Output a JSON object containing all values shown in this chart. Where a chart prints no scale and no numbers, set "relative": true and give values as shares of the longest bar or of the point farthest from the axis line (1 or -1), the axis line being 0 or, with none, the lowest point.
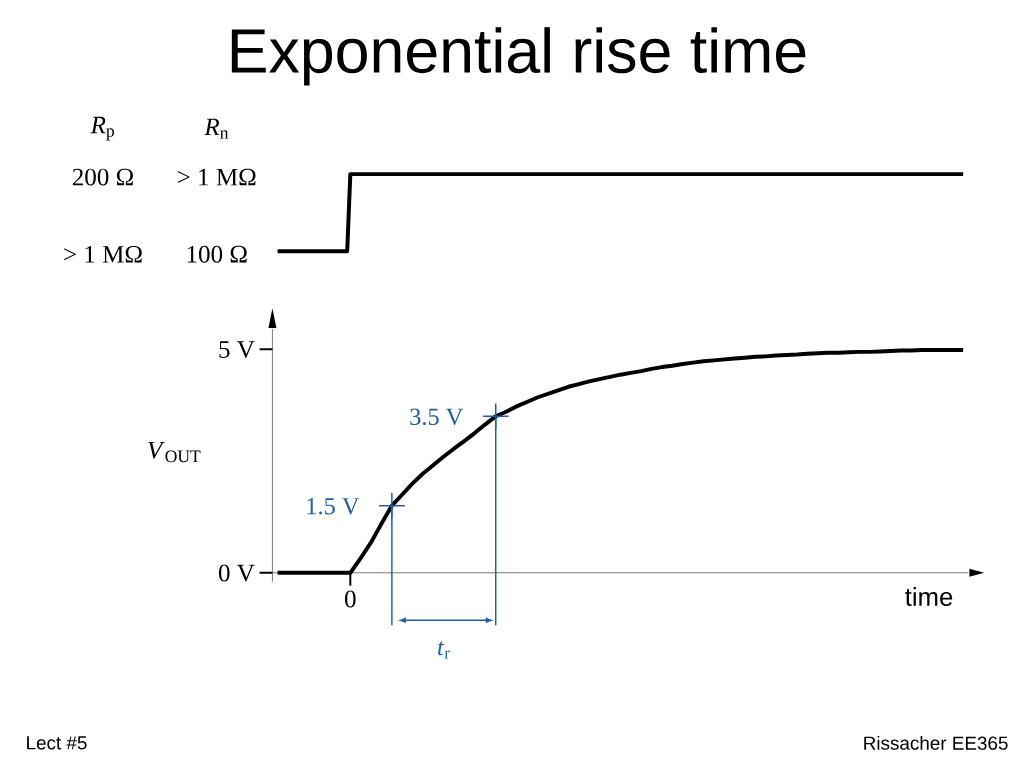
{
  "chart_data": [
    {
      "type": "step",
      "title": "Exponential rise time",
      "relative": true,
      "color": "#000000",
      "categories": [
        null,
        null,
        null,
        null,
        null,
        null,
        null,
        null,
        null,
        null,
        null,
        null,
        null,
        null,
        null,
        null,
        null,
        null,
        null,
        null,
        null,
        null,
        null,
        null,
        null,
        null,
        null,
        null,
        null,
        null,
        null,
        null,
        null,
        null,
        null,
        null,
        null,
        null,
        null,
        null,
        null,
        null,
        null,
        null,
        null,
        null,
        null,
        null,
        null,
        null,
        null,
        null,
        null,
        null,
        null,
        null,
        null,
        null,
        null,
        null,
        null,
        null,
        null,
        null,
        null,
        null,
        null
      ],
      "values": [
        0,
        0,
        0,
        0,
        0,
        0,
        0,
        1,
        1,
        1,
        1,
        1,
        1,
        1,
        1,
        1,
        1,
        1,
        1,
        1,
        1,
        1,
        1,
        1,
        1,
        1,
        1,
        1,
        1,
        1,
        1,
        1,
        1,
        1,
        1,
        1,
        1,
        1,
        1,
        1,
        1,
        1,
        1,
        1,
        1,
        1,
        1,
        1,
        1,
        1,
        1,
        1,
        1,
        1,
        1,
        1,
        1,
        1,
        1,
        1,
        1,
        1,
        1,
        1,
        1,
        1,
        1
      ],
      "annotations": [
        "*R*$_{p}$",
        "*R*$_{n}$",
        "200 Ω",
        "> 1 MΩ",
        "> 1 MΩ",
        "100 Ω"
      ]
    },
    {
      "type": "line",
      "xlabel": "time",
      "ylabel": "*V*$_{OUT}$",
      "categories": [
        null,
        null,
        null,
        null,
        null,
        null,
        null,
        "0",
        null,
        null,
        null,
        null,
        null,
        null,
        null,
        null,
        null,
        null,
        null,
        null,
        null,
        null,
        null,
        null,
        null,
        null,
        null,
        null,
        null,
        null,
        null,
        null,
        null,
        null,
        null,
        null,
        null,
        null,
        null,
        null,
        null,
        null,
        null,
        null,
        null,
        null,
        null,
        null,
        null,
        null,
        null,
        null,
        null,
        null,
        null,
        null,
        null,
        null,
        null,
        null,
        null,
        null,
        null,
        null,
        null,
        null,
        null
      ],
      "series": [
        {
          "color": "#000000",
          "values": [
            0,
            0,
            0,
            0,
            0,
            0,
            0,
            0,
            0.33,
            0.68,
            1.1,
            1.5,
            1.75,
            2.0,
            2.22,
            2.41,
            2.6,
            2.78,
            2.95,
            3.13,
            3.32,
            3.5,
            3.6,
            3.72,
            3.82,
            3.92,
            4.0,
            4.08,
            4.16,
            4.22,
            4.28,
            4.33,
            4.38,
            4.43,
            4.47,
            4.51,
            4.56,
            4.6,
            4.63,
            4.67,
            4.7,
            4.73,
            4.75,
            4.77,
            4.79,
            4.81,
            4.83,
            4.84,
            4.86,
            4.87,
            4.88,
            4.9,
            4.91,
            4.92,
            4.92,
            4.93,
            4.94,
            4.94,
            4.95,
            4.96,
            4.97,
            4.97,
            4.98,
            4.98,
            4.98,
            4.98,
            4.98
          ]
        },
        {
          "type": "scatter",
          "color": "#1f5f9e",
          "marker": "cross",
          "values": [
            null,
            null,
            null,
            null,
            null,
            null,
            null,
            null,
            null,
            null,
            null,
            1.5,
            null,
            null,
            null,
            null,
            null,
            null,
            null,
            null,
            null,
            3.5,
            null,
            null,
            null,
            null,
            null,
            null,
            null,
            null,
            null,
            null,
            null,
            null,
            null,
            null,
            null,
            null,
            null,
            null,
            null,
            null,
            null,
            null,
            null,
            null,
            null,
            null,
            null,
            null,
            null,
            null,
            null,
            null,
            null,
            null,
            null,
            null,
            null,
            null,
            null,
            null,
            null,
            null,
            null,
            null,
            null
          ],
          "value_labels": [
            null,
            null,
            null,
            null,
            null,
            null,
            null,
            null,
            null,
            null,
            null,
            "1.5 V",
            null,
            null,
            null,
            null,
            null,
            null,
            null,
            null,
            null,
            "3.5 V",
            null,
            null,
            null,
            null,
            null,
            null,
            null,
            null,
            null,
            null,
            null,
            null,
            null,
            null,
            null,
            null,
            null,
            null,
            null,
            null,
            null,
            null,
            null,
            null,
            null,
            null,
            null,
            null,
            null,
            null,
            null,
            null,
            null,
            null,
            null,
            null,
            null,
            null,
            null,
            null,
            null,
            null,
            null,
            null,
            null
          ]
        }
      ],
      "ylim": [
        -0.2,
        5.45
      ],
      "yticks": [
        {
          "value": 0,
          "label": "0 V"
        },
        {
          "value": 5,
          "label": "5 V"
        }
      ],
      "annotations": [
        "*t*$_{r}$",
        "Lect #5",
        "Rissacher EE365"
      ]
    }
  ]
}
